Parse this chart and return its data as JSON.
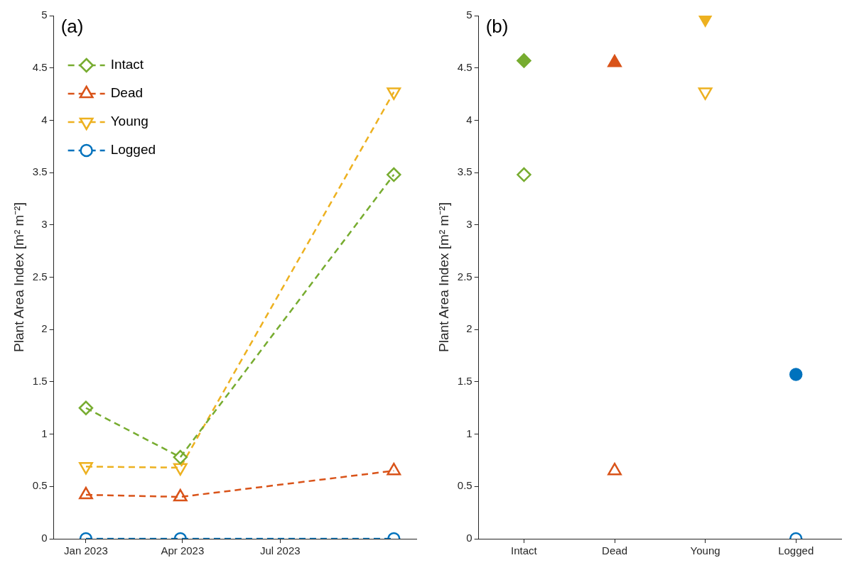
{
  "chart_data": [
    {
      "type": "line",
      "ylabel": "Plant Area Index [m² m⁻²]",
      "x": [
        "2023-01-01",
        "2023-03-30",
        "2023-10-15"
      ],
      "xlim": [
        "2022-12-02",
        "2023-11-05"
      ],
      "xticks": [
        {
          "value": "2023-01-01",
          "label": "Jan 2023"
        },
        {
          "value": "2023-04-01",
          "label": "Apr 2023"
        },
        {
          "value": "2023-07-01",
          "label": "Jul 2023"
        }
      ],
      "ylim": [
        0,
        5
      ],
      "yticks": [
        0,
        0.5,
        1,
        1.5,
        2,
        2.5,
        3,
        3.5,
        4,
        4.5,
        5
      ],
      "grid": false,
      "legend": "top left",
      "line_style": "dashed",
      "annotations": [
        "(a)"
      ],
      "series": [
        {
          "name": "Intact",
          "color": "#77ac30",
          "marker": "diamond",
          "values": [
            1.25,
            0.78,
            3.48
          ]
        },
        {
          "name": "Dead",
          "color": "#d95319",
          "marker": "triangle",
          "values": [
            0.42,
            0.4,
            0.65
          ]
        },
        {
          "name": "Young",
          "color": "#edb120",
          "marker": "triangle-down",
          "values": [
            0.69,
            0.68,
            4.27
          ]
        },
        {
          "name": "Logged",
          "color": "#0072bd",
          "marker": "circle",
          "values": [
            0,
            0,
            0
          ]
        }
      ]
    },
    {
      "type": "scatter",
      "ylabel": "Plant Area Index [m² m⁻²]",
      "categories": [
        "Intact",
        "Dead",
        "Young",
        "Logged"
      ],
      "ylim": [
        0,
        5
      ],
      "yticks": [
        0,
        0.5,
        1,
        1.5,
        2,
        2.5,
        3,
        3.5,
        4,
        4.5,
        5
      ],
      "grid": false,
      "legend": false,
      "annotations": [
        "(b)"
      ],
      "series": [
        {
          "color": "#77ac30",
          "marker": "diamond-filled",
          "values": [
            4.57,
            null,
            null,
            null
          ]
        },
        {
          "color": "#77ac30",
          "marker": "diamond",
          "values": [
            3.48,
            null,
            null,
            null
          ]
        },
        {
          "color": "#d95319",
          "marker": "triangle-filled",
          "values": [
            null,
            4.55,
            null,
            null
          ]
        },
        {
          "color": "#d95319",
          "marker": "triangle",
          "values": [
            null,
            0.65,
            null,
            null
          ]
        },
        {
          "color": "#edb120",
          "marker": "triangle-down-filled",
          "values": [
            null,
            null,
            4.97,
            null
          ]
        },
        {
          "color": "#edb120",
          "marker": "triangle-down",
          "values": [
            null,
            null,
            4.27,
            null
          ]
        },
        {
          "color": "#0072bd",
          "marker": "circle-filled",
          "values": [
            null,
            null,
            null,
            1.57
          ]
        },
        {
          "color": "#0072bd",
          "marker": "circle",
          "values": [
            null,
            null,
            null,
            0
          ]
        }
      ]
    }
  ]
}
